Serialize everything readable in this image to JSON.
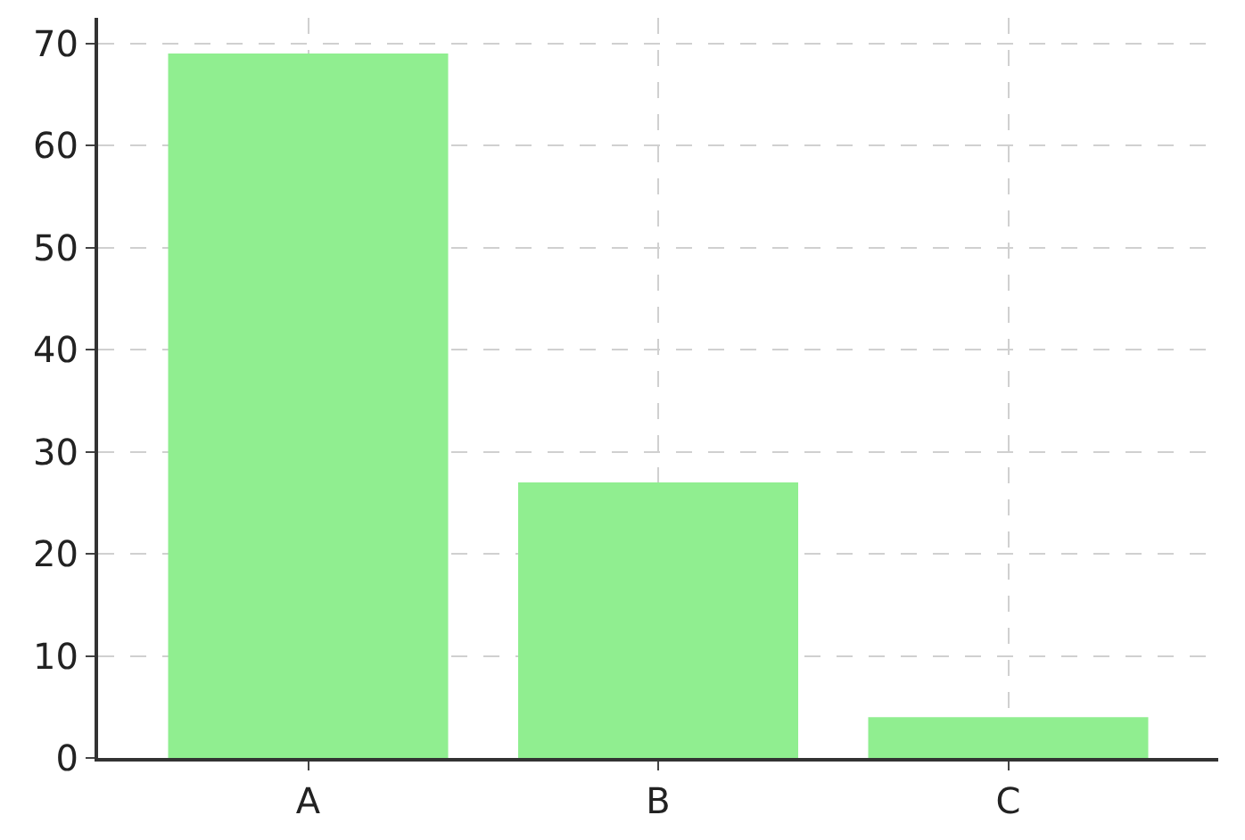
{
  "chart_data": {
    "type": "bar",
    "categories": [
      "A",
      "B",
      "C"
    ],
    "values": [
      69,
      27,
      4
    ],
    "color": "#90ee90",
    "ylim": [
      0,
      72.5
    ],
    "yticks": [
      0,
      10,
      20,
      30,
      40,
      50,
      60,
      70
    ],
    "grid": true
  }
}
